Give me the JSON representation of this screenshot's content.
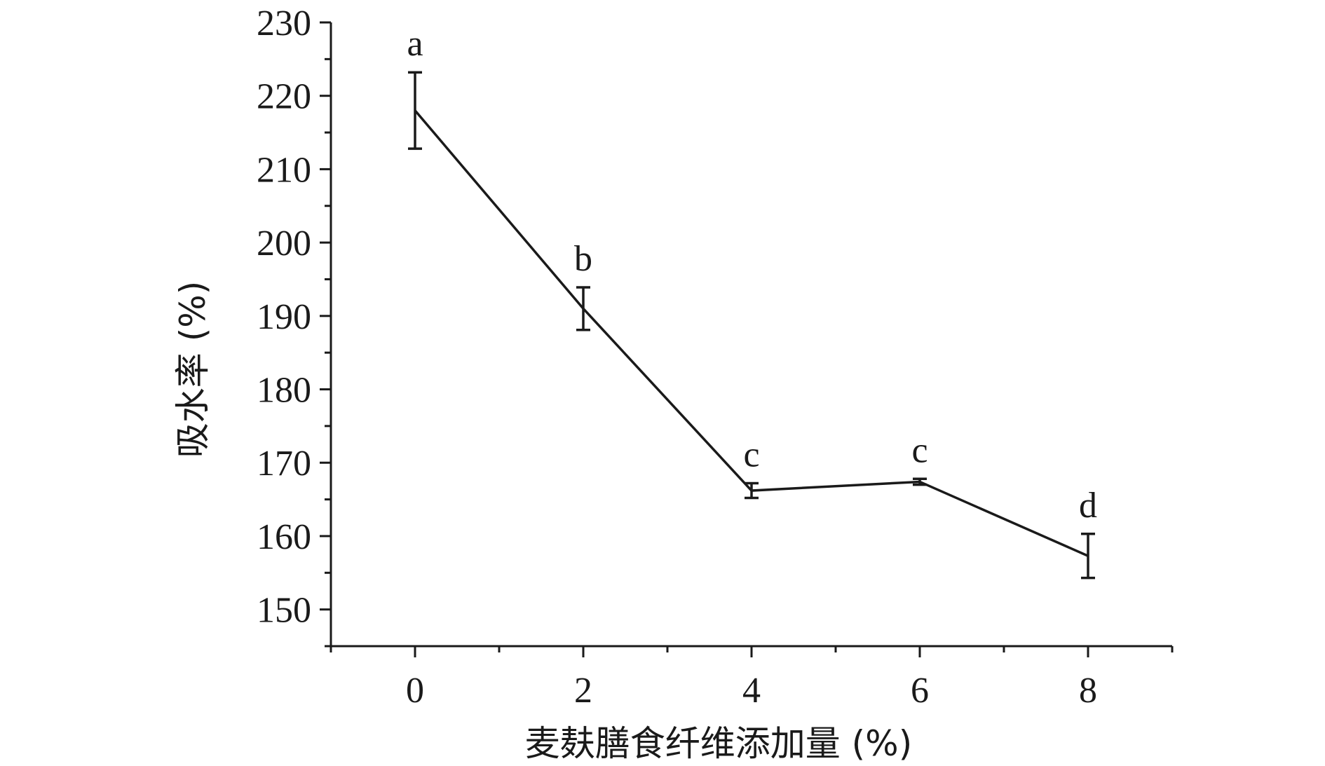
{
  "chart_data": {
    "type": "line",
    "xlabel": "麦麸膳食纤维添加量 (%)",
    "ylabel": "吸水率 (%)",
    "x": [
      0,
      2,
      4,
      6,
      8
    ],
    "x_ticks": [
      "0",
      "2",
      "4",
      "6",
      "8"
    ],
    "y_ticks": [
      "150",
      "160",
      "170",
      "180",
      "190",
      "200",
      "210",
      "220",
      "230"
    ],
    "xlim": [
      -1,
      9
    ],
    "ylim": [
      145,
      230
    ],
    "grid": false,
    "series": [
      {
        "values": [
          218.0,
          191.0,
          166.2,
          167.4,
          157.3
        ],
        "error": [
          5.2,
          2.9,
          1.0,
          0.4,
          3.0
        ],
        "significance": [
          "a",
          "b",
          "c",
          "c",
          "d"
        ],
        "color": "#1a1a1a"
      }
    ]
  }
}
